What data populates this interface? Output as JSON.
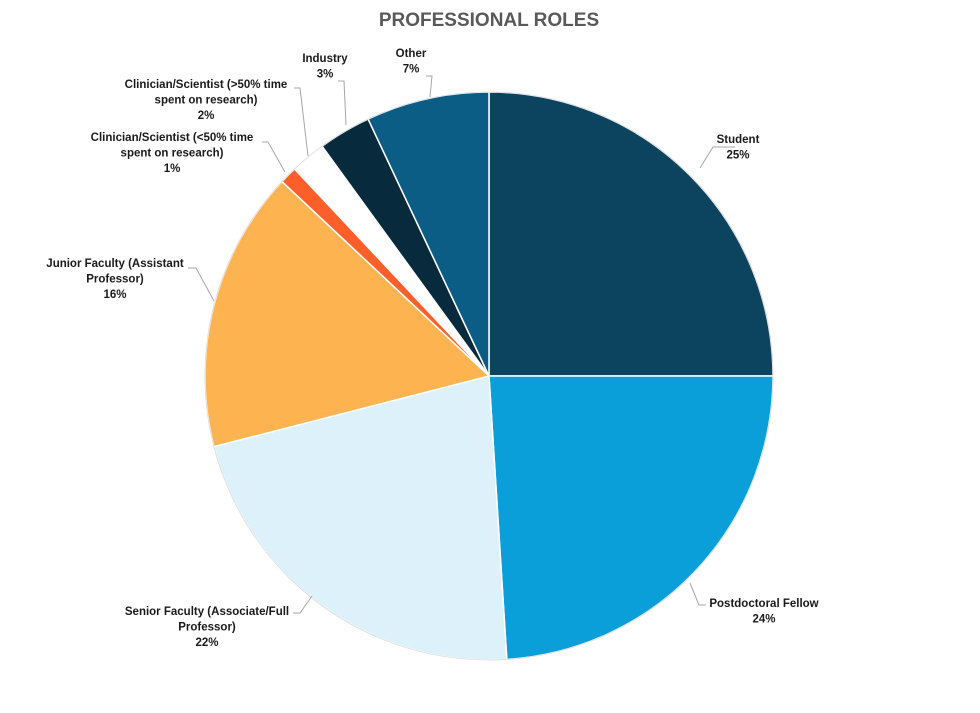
{
  "chart_data": {
    "type": "pie",
    "title": "PROFESSIONAL ROLES",
    "slices": [
      {
        "label_lines": [
          "Student"
        ],
        "value": 25,
        "value_label": "25%",
        "color": "#0c4460"
      },
      {
        "label_lines": [
          "Postdoctoral Fellow"
        ],
        "value": 24,
        "value_label": "24%",
        "color": "#0b9fda"
      },
      {
        "label_lines": [
          "Senior Faculty (Associate/Full",
          "Professor)"
        ],
        "value": 22,
        "value_label": "22%",
        "color": "#ddf1fb"
      },
      {
        "label_lines": [
          "Junior Faculty (Assistant",
          "Professor)"
        ],
        "value": 16,
        "value_label": "16%",
        "color": "#feb351"
      },
      {
        "label_lines": [
          "Clinician/Scientist (<50% time",
          "spent on research)"
        ],
        "value": 1,
        "value_label": "1%",
        "color": "#fd5f2b"
      },
      {
        "label_lines": [
          "Clinician/Scientist (>50% time",
          "spent on research)"
        ],
        "value": 2,
        "value_label": "2%",
        "color": "#ffffff"
      },
      {
        "label_lines": [
          "Industry"
        ],
        "value": 3,
        "value_label": "3%",
        "color": "#072a3c"
      },
      {
        "label_lines": [
          "Other"
        ],
        "value": 7,
        "value_label": "7%",
        "color": "#0b5d85"
      }
    ]
  }
}
